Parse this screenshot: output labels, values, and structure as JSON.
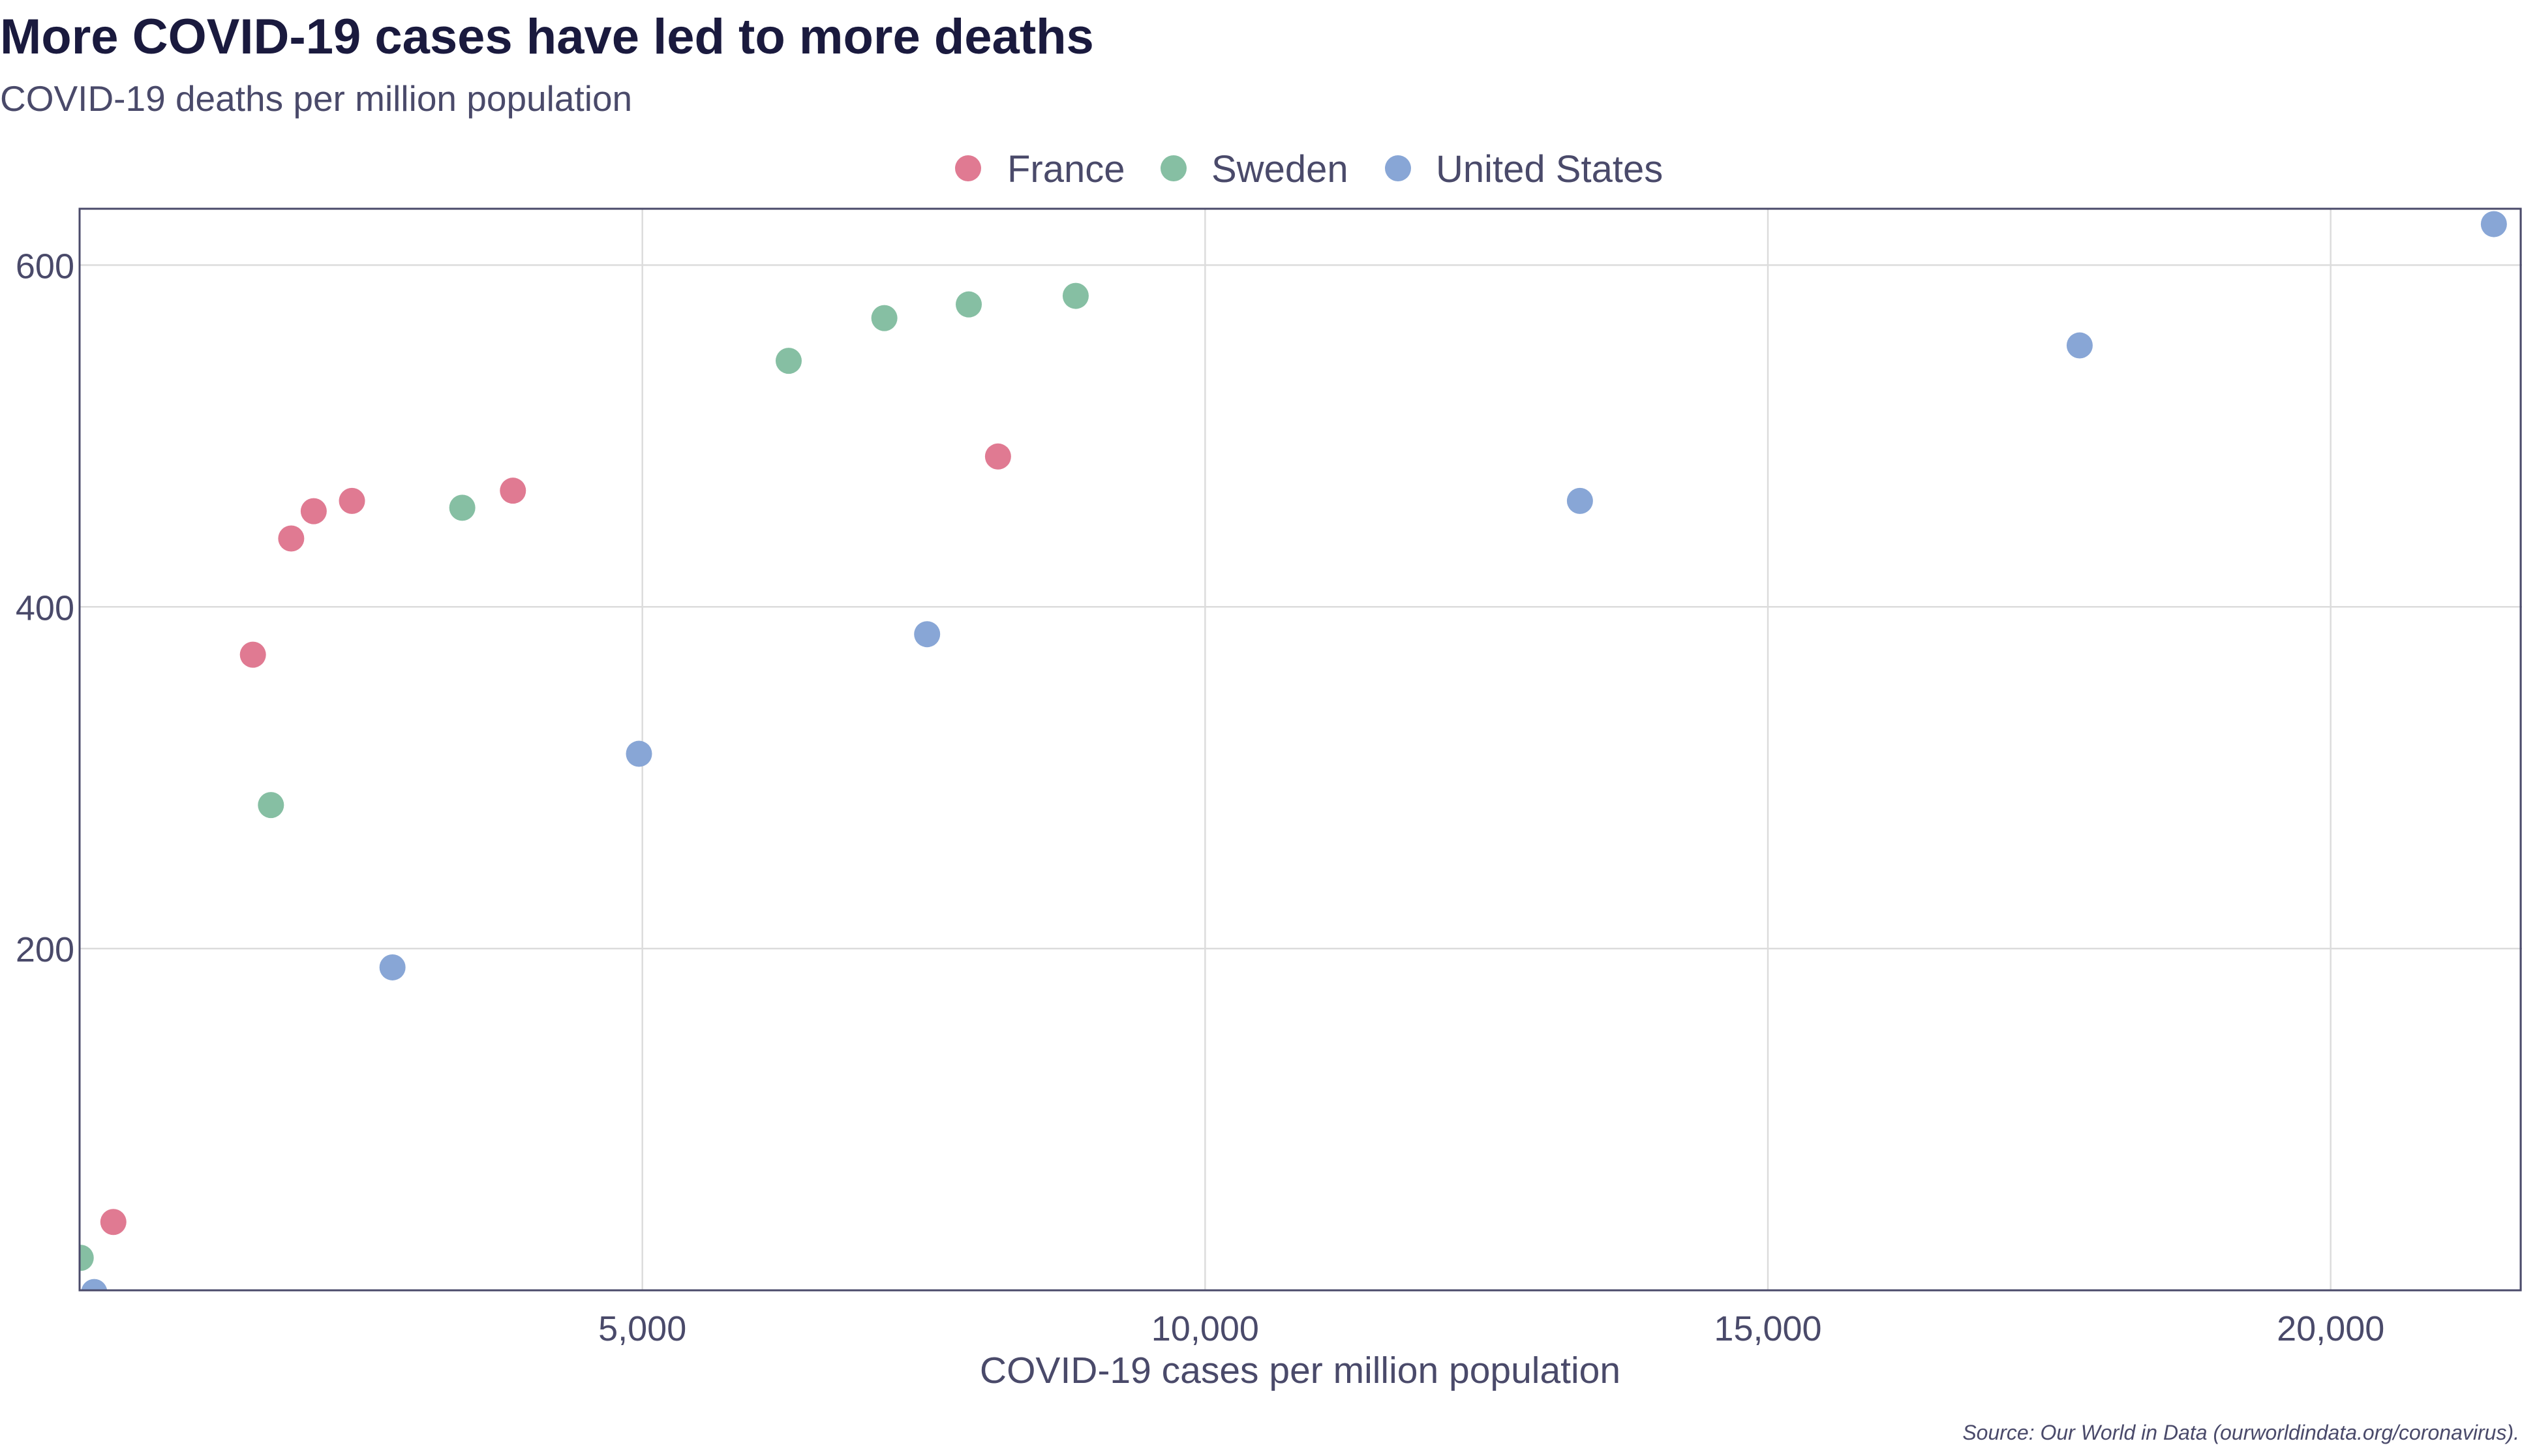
{
  "chart_data": {
    "type": "scatter",
    "title": "More COVID-19 cases have led to more deaths",
    "subtitle": "COVID-19 deaths per million population",
    "xlabel": "COVID-19 cases per million population",
    "ylabel": "",
    "source": "Source: Our World in Data (ourworldindata.org/coronavirus).",
    "xlim": [
      0,
      21700
    ],
    "ylim": [
      0,
      633
    ],
    "x_ticks": [
      5000,
      10000,
      15000,
      20000
    ],
    "x_tick_labels": [
      "5,000",
      "10,000",
      "15,000",
      "20,000"
    ],
    "y_ticks": [
      200,
      400,
      600
    ],
    "y_tick_labels": [
      "200",
      "400",
      "600"
    ],
    "grid": true,
    "legend_position": "top-center",
    "series": [
      {
        "name": "France",
        "color": "#e07a92",
        "points": [
          {
            "x": 300,
            "y": 40
          },
          {
            "x": 1540,
            "y": 372
          },
          {
            "x": 1880,
            "y": 440
          },
          {
            "x": 2080,
            "y": 456
          },
          {
            "x": 2420,
            "y": 462
          },
          {
            "x": 3850,
            "y": 468
          },
          {
            "x": 8160,
            "y": 488
          }
        ]
      },
      {
        "name": "Sweden",
        "color": "#86bfa3",
        "points": [
          {
            "x": 10,
            "y": 19
          },
          {
            "x": 1700,
            "y": 284
          },
          {
            "x": 3400,
            "y": 458
          },
          {
            "x": 6300,
            "y": 544
          },
          {
            "x": 7150,
            "y": 569
          },
          {
            "x": 7900,
            "y": 577
          },
          {
            "x": 8850,
            "y": 582
          }
        ]
      },
      {
        "name": "United States",
        "color": "#88a6d6",
        "points": [
          {
            "x": 130,
            "y": -1
          },
          {
            "x": 2780,
            "y": 189
          },
          {
            "x": 4970,
            "y": 314
          },
          {
            "x": 7530,
            "y": 384
          },
          {
            "x": 13330,
            "y": 462
          },
          {
            "x": 17770,
            "y": 553
          },
          {
            "x": 21450,
            "y": 624
          }
        ]
      }
    ]
  }
}
